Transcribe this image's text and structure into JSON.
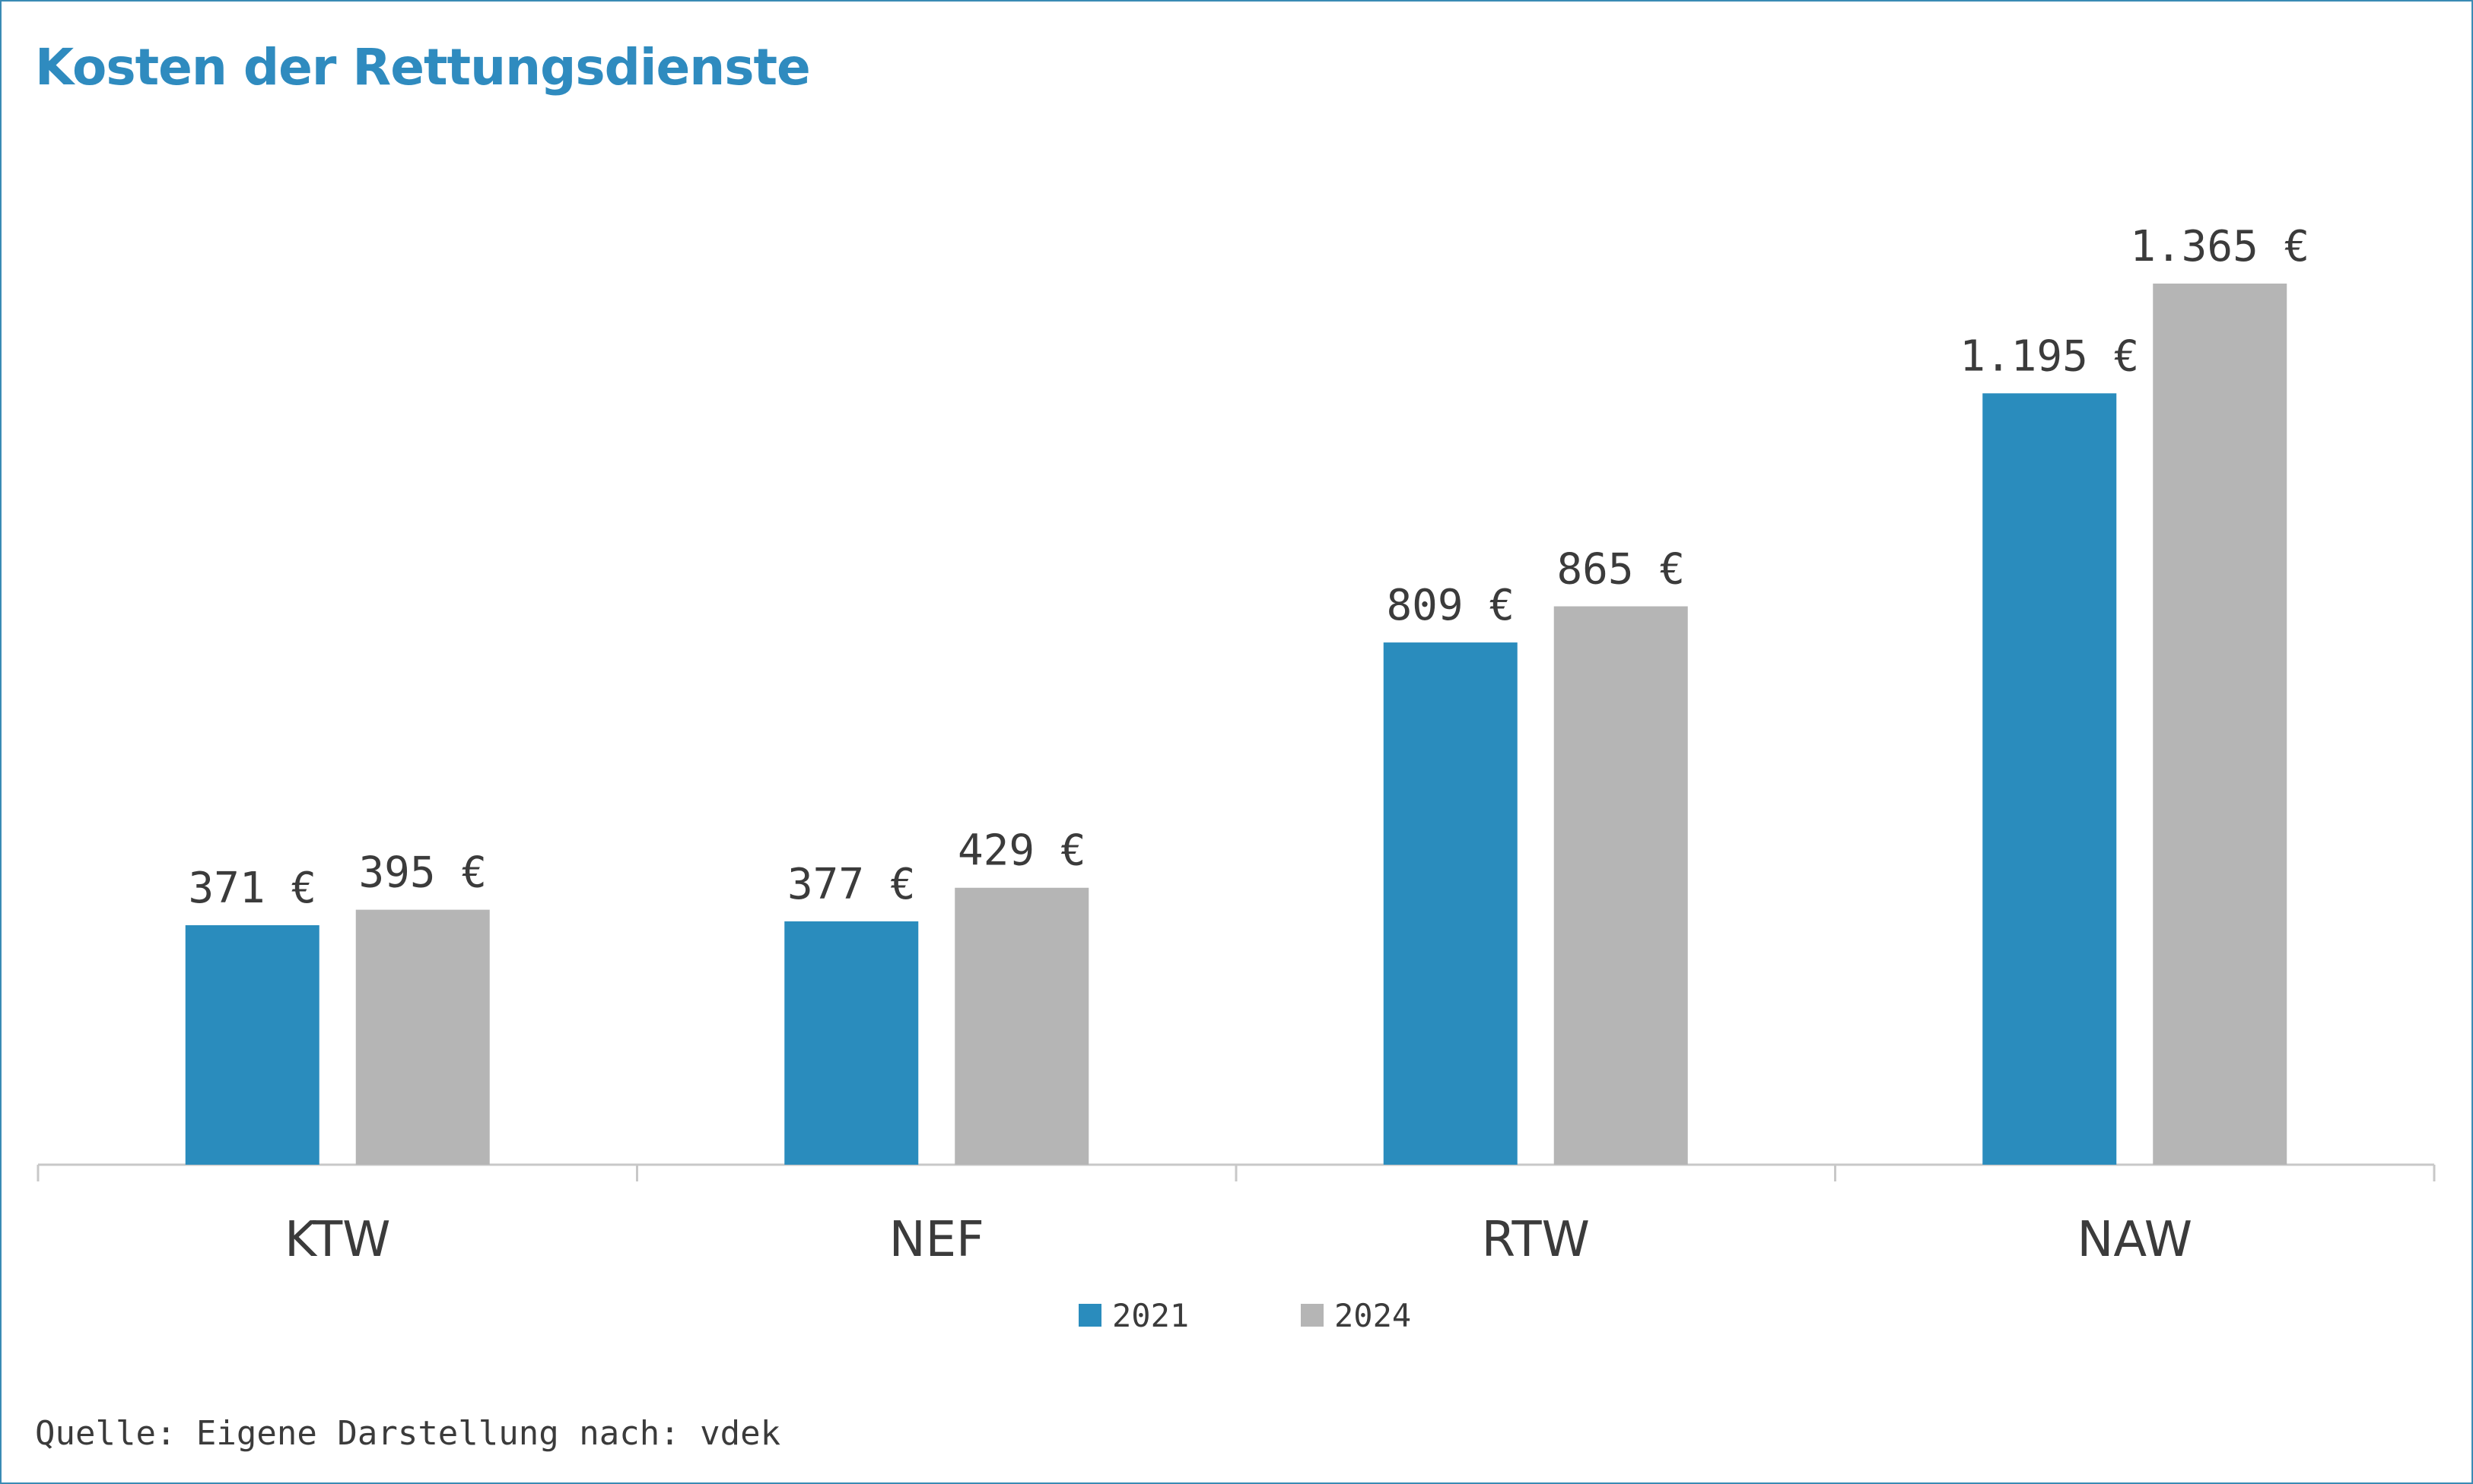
{
  "title": "Kosten der Rettungsdienste",
  "source": "Quelle: Eigene Darstellung nach: vdek",
  "colors": {
    "series_2021": "#2a8cbd",
    "series_2024": "#b5b5b5",
    "title": "#2f8bbf",
    "frame": "#3a8bb4",
    "text": "#3b3b3b"
  },
  "chart_data": {
    "type": "bar",
    "title": "Kosten der Rettungsdienste",
    "categories": [
      "KTW",
      "NEF",
      "RTW",
      "NAW"
    ],
    "series": [
      {
        "name": "2021",
        "values": [
          371,
          377,
          809,
          1195
        ],
        "labels": [
          "371 €",
          "377 €",
          "809 €",
          "1.195 €"
        ]
      },
      {
        "name": "2024",
        "values": [
          395,
          429,
          865,
          1365
        ],
        "labels": [
          "395 €",
          "429 €",
          "865 €",
          "1.365 €"
        ]
      }
    ],
    "ylim": [
      0,
      1365
    ],
    "grid": false,
    "legend": "bottom-center"
  }
}
